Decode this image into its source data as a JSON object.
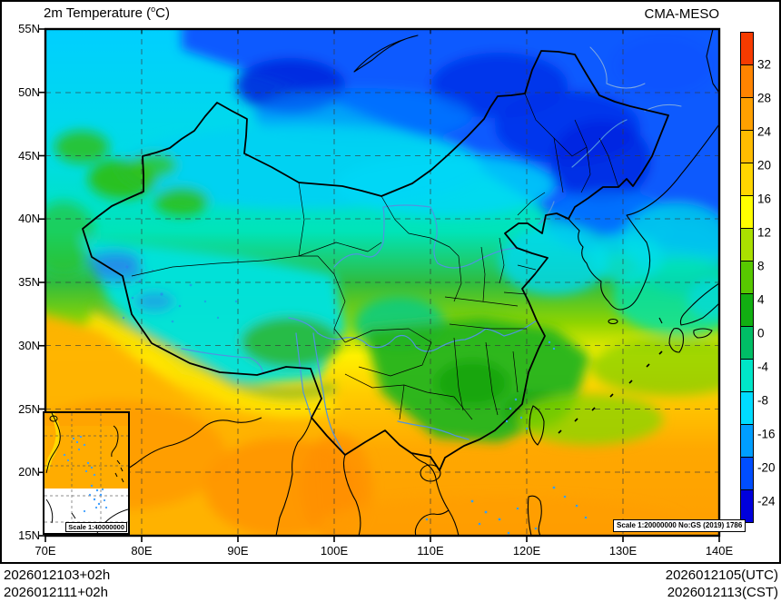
{
  "header": {
    "title_prefix": "2m Temperature (",
    "title_sup": "o",
    "title_suffix": "C)",
    "model_name": "CMA-MESO"
  },
  "axes": {
    "lat_labels": [
      "55N",
      "50N",
      "45N",
      "40N",
      "35N",
      "30N",
      "25N",
      "20N",
      "15N"
    ],
    "lon_labels": [
      "70E",
      "80E",
      "90E",
      "100E",
      "110E",
      "120E",
      "130E",
      "140E"
    ]
  },
  "colorbar": {
    "tick_labels": [
      "32",
      "28",
      "24",
      "20",
      "16",
      "12",
      "8",
      "4",
      "0",
      "-4",
      "-8",
      "-16",
      "-20",
      "-24"
    ],
    "segment_colors": [
      "#F63B00",
      "#FF8400",
      "#FFA000",
      "#FFBC00",
      "#FFD600",
      "#FFFF00",
      "#AAE000",
      "#58C800",
      "#12AF12",
      "#00BE66",
      "#00E6C8",
      "#00DCFF",
      "#009EFF",
      "#004EFF",
      "#0000DC"
    ]
  },
  "map_annotations": {
    "main_scale_note": "Scale 1:20000000 No:GS (2019) 1786",
    "inset_scale_note": "Scale 1:40000000"
  },
  "footer": {
    "run_line1": "2026012103+02h",
    "run_line2": "2026012111+02h",
    "valid_line1": "2026012105(UTC)",
    "valid_line2": "2026012113(CST)"
  }
}
